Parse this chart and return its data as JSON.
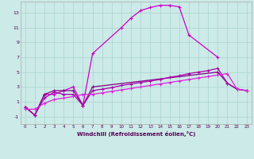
{
  "xlabel": "Windchill (Refroidissement éolien,°C)",
  "background_color": "#cceae7",
  "grid_color": "#aad4d0",
  "xlim": [
    -0.5,
    23.5
  ],
  "ylim": [
    -2.0,
    14.5
  ],
  "yticks": [
    -1,
    1,
    3,
    5,
    7,
    9,
    11,
    13
  ],
  "xticks": [
    0,
    1,
    2,
    3,
    4,
    5,
    6,
    7,
    8,
    9,
    10,
    11,
    12,
    13,
    14,
    15,
    16,
    17,
    18,
    19,
    20,
    21,
    22,
    23
  ],
  "line1_color": "#cc00cc",
  "line2_color": "#880088",
  "line3_color": "#aa00aa",
  "line4_color": "#dd22dd",
  "s1x": [
    0,
    1,
    2,
    3,
    4,
    5,
    6,
    7,
    10,
    11,
    12,
    13,
    14,
    15,
    16,
    17,
    20
  ],
  "s1y": [
    0.3,
    -0.8,
    2.0,
    2.0,
    2.5,
    3.0,
    0.5,
    7.5,
    11.0,
    12.3,
    13.3,
    13.7,
    14.0,
    14.0,
    13.8,
    10.0,
    7.0
  ],
  "s2x": [
    0,
    1,
    2,
    3,
    4,
    5,
    6,
    7,
    20,
    21,
    22,
    23
  ],
  "s2y": [
    0.3,
    -0.8,
    2.0,
    2.5,
    2.5,
    2.5,
    0.5,
    3.0,
    5.0,
    3.5,
    2.7,
    2.5
  ],
  "s3x": [
    0,
    1,
    2,
    3,
    4,
    5,
    6,
    7,
    8,
    9,
    10,
    11,
    12,
    13,
    14,
    15,
    16,
    17,
    18,
    19,
    20,
    21,
    22,
    23
  ],
  "s3y": [
    0.3,
    -0.8,
    1.5,
    2.3,
    2.0,
    2.0,
    0.5,
    2.5,
    2.7,
    2.9,
    3.2,
    3.4,
    3.6,
    3.8,
    4.0,
    4.3,
    4.5,
    4.8,
    5.0,
    5.2,
    5.5,
    3.5,
    2.7,
    2.5
  ],
  "s4x": [
    0,
    1,
    2,
    3,
    4,
    5,
    6,
    7,
    8,
    9,
    10,
    11,
    12,
    13,
    14,
    15,
    16,
    17,
    18,
    19,
    20,
    21,
    22,
    23
  ],
  "s4y": [
    0.0,
    0.0,
    0.8,
    1.3,
    1.5,
    1.7,
    2.0,
    2.0,
    2.2,
    2.4,
    2.6,
    2.8,
    3.0,
    3.2,
    3.4,
    3.6,
    3.8,
    4.0,
    4.2,
    4.4,
    4.6,
    4.8,
    2.7,
    2.5
  ]
}
